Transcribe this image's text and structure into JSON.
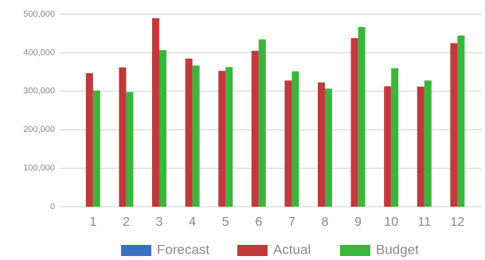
{
  "chart_data": {
    "type": "bar",
    "categories": [
      "1",
      "2",
      "3",
      "4",
      "5",
      "6",
      "7",
      "8",
      "9",
      "10",
      "11",
      "12"
    ],
    "series": [
      {
        "name": "Forecast",
        "color": "#3a6fc4",
        "values": [
          null,
          null,
          null,
          null,
          null,
          null,
          null,
          null,
          null,
          null,
          null,
          null
        ]
      },
      {
        "name": "Actual",
        "color": "#c0393b",
        "values": [
          347000,
          362000,
          490000,
          385000,
          353000,
          405000,
          328000,
          323000,
          438000,
          313000,
          312000,
          425000
        ]
      },
      {
        "name": "Budget",
        "color": "#3cb53c",
        "values": [
          302000,
          298000,
          407000,
          367000,
          363000,
          435000,
          352000,
          307000,
          467000,
          360000,
          328000,
          445000
        ]
      }
    ],
    "ylim": [
      0,
      500000
    ],
    "yticks": [
      0,
      {
        "value": 100000,
        "label": "100,000"
      },
      {
        "value": 200000,
        "label": "200,000"
      },
      {
        "value": 300000,
        "label": "300,000"
      },
      {
        "value": 400000,
        "label": "400,000"
      },
      {
        "value": 500000,
        "label": "500,000"
      }
    ],
    "grid": true,
    "legend": "bottom"
  }
}
